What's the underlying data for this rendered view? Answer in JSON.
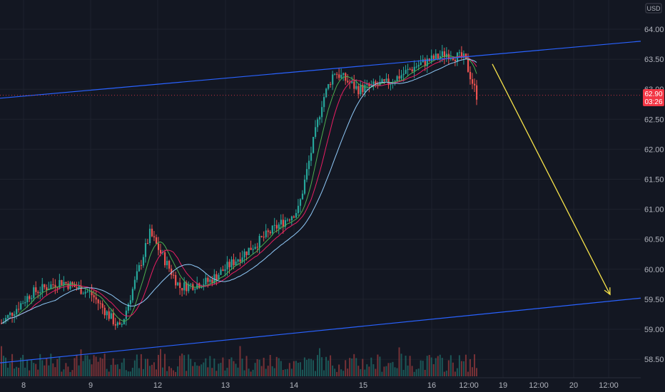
{
  "currency_button": "USD",
  "chart_data": {
    "type": "candlestick",
    "y_ticks": [
      "64.00",
      "63.50",
      "63.00",
      "62.50",
      "62.00",
      "61.50",
      "61.00",
      "60.50",
      "60.00",
      "59.50",
      "59.00",
      "58.50"
    ],
    "x_ticks": [
      "8",
      "9",
      "12",
      "13",
      "14",
      "15",
      "16",
      "12:00",
      "19",
      "12:00",
      "20",
      "12:00"
    ],
    "last_price": {
      "value": "62.90",
      "countdown": "03:26"
    },
    "ylim": [
      58.35,
      64.25
    ],
    "grid": true,
    "candles_summary": [
      {
        "x": 8.0,
        "y": 59.1
      },
      {
        "x": 8.5,
        "y": 59.6
      },
      {
        "x": 9.0,
        "y": 59.8
      },
      {
        "x": 9.5,
        "y": 59.6
      },
      {
        "x": 10.0,
        "y": 59.0
      },
      {
        "x": 10.5,
        "y": 60.6
      },
      {
        "x": 11.0,
        "y": 59.7
      },
      {
        "x": 11.5,
        "y": 59.8
      },
      {
        "x": 12.0,
        "y": 60.2
      },
      {
        "x": 12.5,
        "y": 60.6
      },
      {
        "x": 13.0,
        "y": 61.0
      },
      {
        "x": 13.4,
        "y": 62.8
      },
      {
        "x": 13.6,
        "y": 63.3
      },
      {
        "x": 14.0,
        "y": 63.0
      },
      {
        "x": 14.5,
        "y": 63.1
      },
      {
        "x": 15.0,
        "y": 63.4
      },
      {
        "x": 15.5,
        "y": 63.6
      },
      {
        "x": 15.8,
        "y": 63.5
      },
      {
        "x": 16.0,
        "y": 62.9
      }
    ],
    "channel_upper": [
      {
        "x": 0,
        "y": 62.85
      },
      {
        "x": 1,
        "y": 63.8
      }
    ],
    "channel_lower": [
      {
        "x": 0,
        "y": 58.44
      },
      {
        "x": 1,
        "y": 59.52
      }
    ],
    "projection_arrow": {
      "from": 63.42,
      "to": 59.58
    },
    "colors": {
      "up": "#26a69a",
      "down": "#ef5350",
      "channel": "#2962ff",
      "arrow": "#f7e34a",
      "ma1": "#4caf50",
      "ma2": "#e91e63",
      "ma3": "#90caf9"
    }
  }
}
